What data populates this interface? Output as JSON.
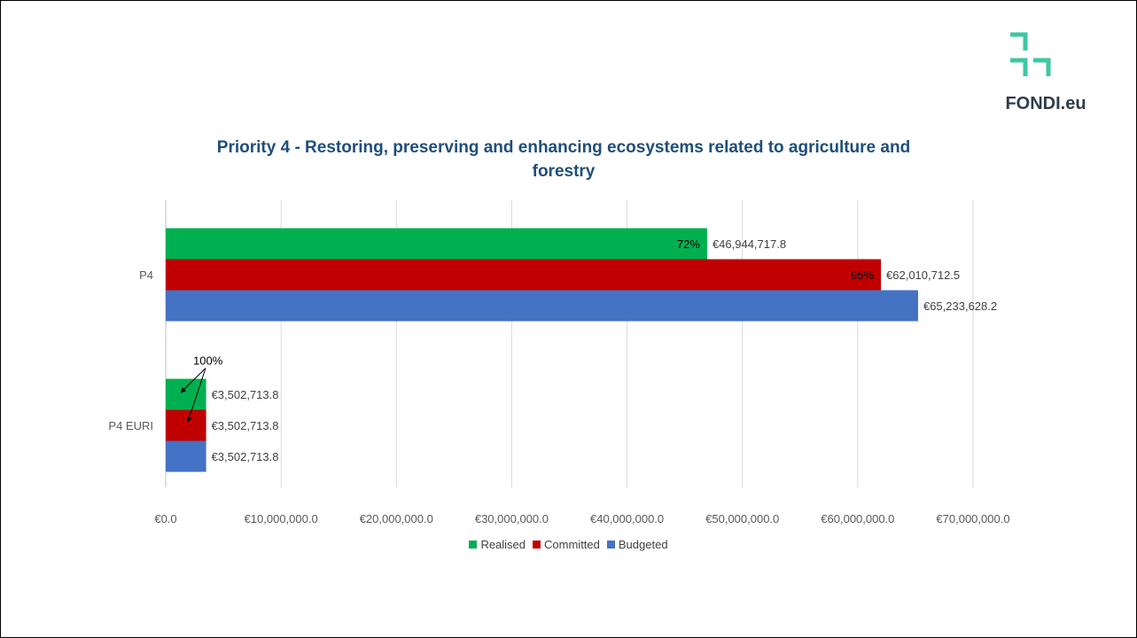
{
  "logo": {
    "text": "FONDI.eu",
    "color": "#3ec7a3"
  },
  "chart_data": {
    "type": "bar",
    "orientation": "horizontal",
    "title": "Priority 4 - Restoring, preserving and enhancing ecosystems related to agriculture and forestry",
    "categories": [
      "P4",
      "P4 EURI"
    ],
    "series": [
      {
        "name": "Realised",
        "color": "#00B050",
        "values": [
          46944717.8,
          3502713.8
        ],
        "labels": [
          "€46,944,717.8",
          "€3,502,713.8"
        ],
        "pct": [
          "72%",
          null
        ]
      },
      {
        "name": "Committed",
        "color": "#C00000",
        "values": [
          62010712.5,
          3502713.8
        ],
        "labels": [
          "€62,010,712.5",
          "€3,502,713.8"
        ],
        "pct": [
          "95%",
          null
        ]
      },
      {
        "name": "Budgeted",
        "color": "#4472C4",
        "values": [
          65233628.2,
          3502713.8
        ],
        "labels": [
          "€65,233,628.2",
          "€3,502,713.8"
        ],
        "pct": [
          null,
          null
        ]
      }
    ],
    "xlim": [
      0,
      70000000
    ],
    "xticks": [
      {
        "value": 0,
        "label": "€0.0"
      },
      {
        "value": 10000000,
        "label": "€10,000,000.0"
      },
      {
        "value": 20000000,
        "label": "€20,000,000.0"
      },
      {
        "value": 30000000,
        "label": "€30,000,000.0"
      },
      {
        "value": 40000000,
        "label": "€40,000,000.0"
      },
      {
        "value": 50000000,
        "label": "€50,000,000.0"
      },
      {
        "value": 60000000,
        "label": "€60,000,000.0"
      },
      {
        "value": 70000000,
        "label": "€70,000,000.0"
      }
    ],
    "annotations": [
      {
        "text": "100%",
        "category": "P4 EURI"
      }
    ],
    "grid": true,
    "legend": "bottom"
  }
}
